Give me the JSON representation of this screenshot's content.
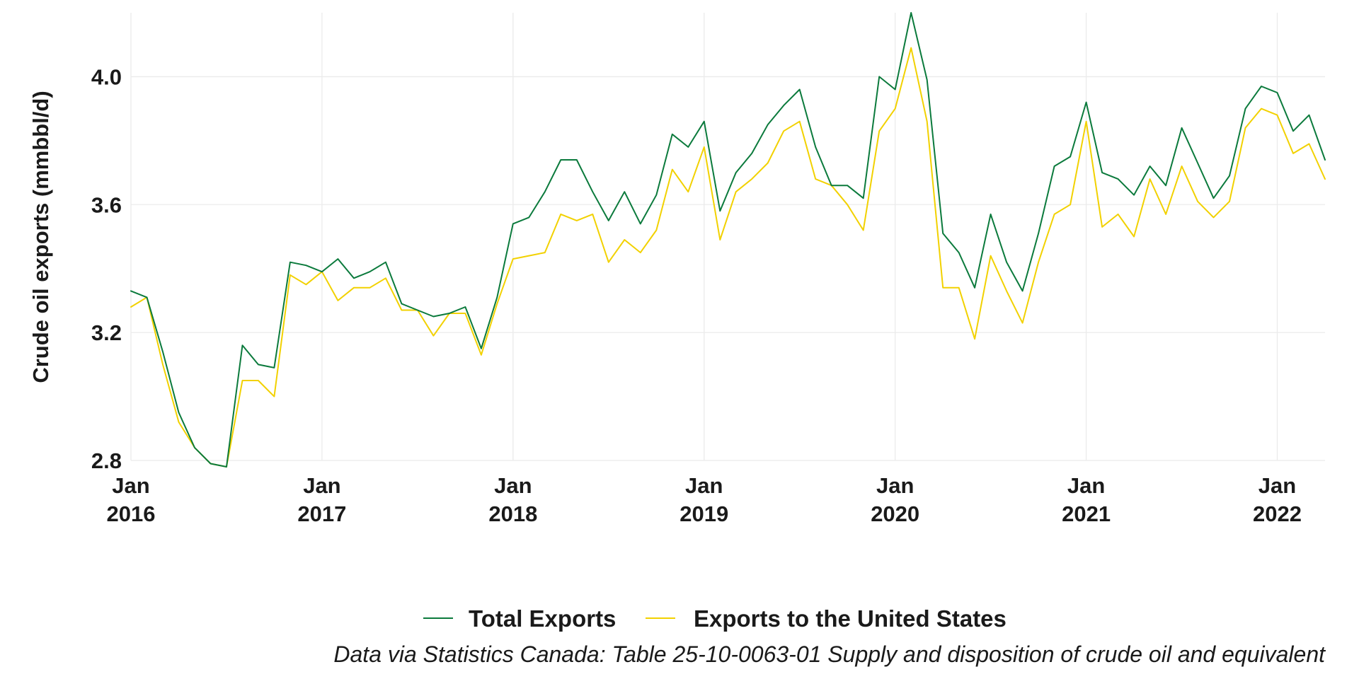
{
  "chart_data": {
    "type": "line",
    "title": "",
    "xlabel": "",
    "ylabel": "Crude oil exports (mmbbl/d)",
    "ylim": [
      2.8,
      4.2
    ],
    "y_ticks": [
      {
        "value": 2.8,
        "label": "2.8"
      },
      {
        "value": 3.2,
        "label": "3.2"
      },
      {
        "value": 3.6,
        "label": "3.6"
      },
      {
        "value": 4.0,
        "label": "4.0"
      }
    ],
    "x_start": "2016-01",
    "x_end": "2022-04",
    "x_ticks": [
      {
        "month": "Jan",
        "year": "2016",
        "date": "2016-01"
      },
      {
        "month": "Jan",
        "year": "2017",
        "date": "2017-01"
      },
      {
        "month": "Jan",
        "year": "2018",
        "date": "2018-01"
      },
      {
        "month": "Jan",
        "year": "2019",
        "date": "2019-01"
      },
      {
        "month": "Jan",
        "year": "2020",
        "date": "2020-01"
      },
      {
        "month": "Jan",
        "year": "2021",
        "date": "2021-01"
      },
      {
        "month": "Jan",
        "year": "2022",
        "date": "2022-01"
      }
    ],
    "grid": true,
    "legend_position": "bottom",
    "x": [
      "2016-01",
      "2016-02",
      "2016-03",
      "2016-04",
      "2016-05",
      "2016-06",
      "2016-07",
      "2016-08",
      "2016-09",
      "2016-10",
      "2016-11",
      "2016-12",
      "2017-01",
      "2017-02",
      "2017-03",
      "2017-04",
      "2017-05",
      "2017-06",
      "2017-07",
      "2017-08",
      "2017-09",
      "2017-10",
      "2017-11",
      "2017-12",
      "2018-01",
      "2018-02",
      "2018-03",
      "2018-04",
      "2018-05",
      "2018-06",
      "2018-07",
      "2018-08",
      "2018-09",
      "2018-10",
      "2018-11",
      "2018-12",
      "2019-01",
      "2019-02",
      "2019-03",
      "2019-04",
      "2019-05",
      "2019-06",
      "2019-07",
      "2019-08",
      "2019-09",
      "2019-10",
      "2019-11",
      "2019-12",
      "2020-01",
      "2020-02",
      "2020-03",
      "2020-04",
      "2020-05",
      "2020-06",
      "2020-07",
      "2020-08",
      "2020-09",
      "2020-10",
      "2020-11",
      "2020-12",
      "2021-01",
      "2021-02",
      "2021-03",
      "2021-04",
      "2021-05",
      "2021-06",
      "2021-07",
      "2021-08",
      "2021-09",
      "2021-10",
      "2021-11",
      "2021-12",
      "2022-01",
      "2022-02",
      "2022-03",
      "2022-04"
    ],
    "series": [
      {
        "name": "Total Exports",
        "color": "#0b7a3c",
        "values": [
          3.33,
          3.31,
          3.14,
          2.95,
          2.84,
          2.79,
          2.78,
          3.16,
          3.1,
          3.09,
          3.42,
          3.41,
          3.39,
          3.43,
          3.37,
          3.39,
          3.42,
          3.29,
          3.27,
          3.25,
          3.26,
          3.28,
          3.15,
          3.31,
          3.54,
          3.56,
          3.64,
          3.74,
          3.74,
          3.64,
          3.55,
          3.64,
          3.54,
          3.63,
          3.82,
          3.78,
          3.86,
          3.58,
          3.7,
          3.76,
          3.85,
          3.91,
          3.96,
          3.78,
          3.66,
          3.66,
          3.62,
          4.0,
          3.96,
          4.2,
          3.99,
          3.51,
          3.45,
          3.34,
          3.57,
          3.42,
          3.33,
          3.51,
          3.72,
          3.75,
          3.92,
          3.7,
          3.68,
          3.63,
          3.72,
          3.66,
          3.84,
          3.73,
          3.62,
          3.69,
          3.9,
          3.97,
          3.95,
          3.83,
          3.88,
          3.74
        ]
      },
      {
        "name": "Exports to the United States",
        "color": "#f2d100",
        "values": [
          3.28,
          3.31,
          3.1,
          2.92,
          2.84,
          2.79,
          2.78,
          3.05,
          3.05,
          3.0,
          3.38,
          3.35,
          3.39,
          3.3,
          3.34,
          3.34,
          3.37,
          3.27,
          3.27,
          3.19,
          3.26,
          3.26,
          3.13,
          3.29,
          3.43,
          3.44,
          3.45,
          3.57,
          3.55,
          3.57,
          3.42,
          3.49,
          3.45,
          3.52,
          3.71,
          3.64,
          3.78,
          3.49,
          3.64,
          3.68,
          3.73,
          3.83,
          3.86,
          3.68,
          3.66,
          3.6,
          3.52,
          3.83,
          3.9,
          4.09,
          3.86,
          3.34,
          3.34,
          3.18,
          3.44,
          3.33,
          3.23,
          3.42,
          3.57,
          3.6,
          3.86,
          3.53,
          3.57,
          3.5,
          3.68,
          3.57,
          3.72,
          3.61,
          3.56,
          3.61,
          3.84,
          3.9,
          3.88,
          3.76,
          3.79,
          3.68
        ]
      }
    ],
    "caption": "Data via Statistics Canada: Table 25-10-0063-01  Supply and disposition of crude oil and equivalent"
  }
}
